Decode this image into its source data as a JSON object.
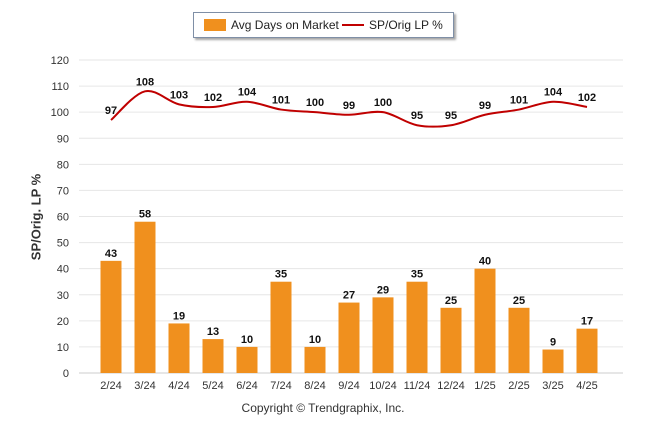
{
  "chart_data": {
    "type": "bar",
    "categories": [
      "2/24",
      "3/24",
      "4/24",
      "5/24",
      "6/24",
      "7/24",
      "8/24",
      "9/24",
      "10/24",
      "11/24",
      "12/24",
      "1/25",
      "2/25",
      "3/25",
      "4/25"
    ],
    "series": [
      {
        "name": "Avg Days on Market",
        "type": "bar",
        "color": "#f0901e",
        "values": [
          43,
          58,
          19,
          13,
          10,
          35,
          10,
          27,
          29,
          35,
          25,
          40,
          25,
          9,
          17
        ]
      },
      {
        "name": "SP/Orig LP %",
        "type": "line",
        "color": "#c00000",
        "values": [
          97,
          108,
          103,
          102,
          104,
          101,
          100,
          99,
          100,
          95,
          95,
          99,
          101,
          104,
          102
        ]
      }
    ],
    "ylabel": "SP/Orig. LP %",
    "xlabel": "",
    "ylim": [
      0,
      120
    ],
    "yticks": [
      0,
      10,
      20,
      30,
      40,
      50,
      60,
      70,
      80,
      90,
      100,
      110,
      120
    ],
    "grid": true,
    "legend_position": "top-center"
  },
  "legend": {
    "bar_label": "Avg Days on Market",
    "line_label": "SP/Orig LP %"
  },
  "footer": "Copyright © Trendgraphix, Inc."
}
